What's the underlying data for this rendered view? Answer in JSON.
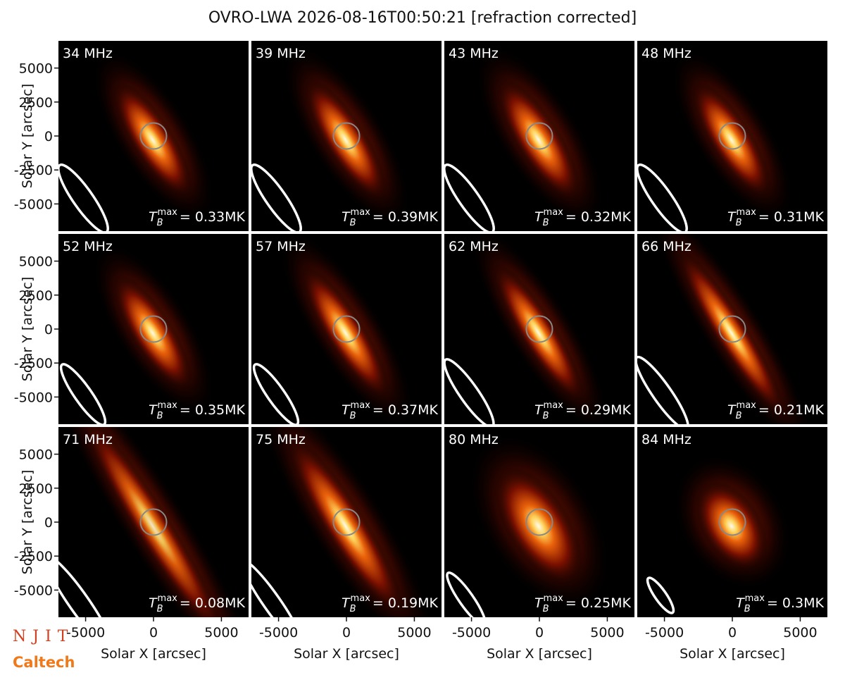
{
  "title": "OVRO-LWA 2026-08-16T00:50:21 [refraction corrected]",
  "logos": [
    "NJIT",
    "Caltech"
  ],
  "chart_data": [
    {
      "type": "image",
      "title": "34 MHz",
      "xlim": [
        -7000,
        7000
      ],
      "ylim": [
        -7000,
        7000
      ],
      "ylabel": "Solar Y [arcsec]",
      "yticks": [
        -5000,
        -2500,
        0,
        2500,
        5000
      ],
      "annotation": {
        "symbol": "T",
        "sub": "B",
        "sup": "max",
        "text": "= 0.33MK"
      }
    },
    {
      "type": "image",
      "title": "39 MHz",
      "xlim": [
        -7000,
        7000
      ],
      "ylim": [
        -7000,
        7000
      ],
      "annotation": {
        "symbol": "T",
        "sub": "B",
        "sup": "max",
        "text": "= 0.39MK"
      }
    },
    {
      "type": "image",
      "title": "43 MHz",
      "xlim": [
        -7000,
        7000
      ],
      "ylim": [
        -7000,
        7000
      ],
      "annotation": {
        "symbol": "T",
        "sub": "B",
        "sup": "max",
        "text": "= 0.32MK"
      }
    },
    {
      "type": "image",
      "title": "48 MHz",
      "xlim": [
        -7000,
        7000
      ],
      "ylim": [
        -7000,
        7000
      ],
      "annotation": {
        "symbol": "T",
        "sub": "B",
        "sup": "max",
        "text": "= 0.31MK"
      }
    },
    {
      "type": "image",
      "title": "52 MHz",
      "xlim": [
        -7000,
        7000
      ],
      "ylim": [
        -7000,
        7000
      ],
      "ylabel": "Solar Y [arcsec]",
      "yticks": [
        -5000,
        -2500,
        0,
        2500,
        5000
      ],
      "annotation": {
        "symbol": "T",
        "sub": "B",
        "sup": "max",
        "text": "= 0.35MK"
      }
    },
    {
      "type": "image",
      "title": "57 MHz",
      "xlim": [
        -7000,
        7000
      ],
      "ylim": [
        -7000,
        7000
      ],
      "annotation": {
        "symbol": "T",
        "sub": "B",
        "sup": "max",
        "text": "= 0.37MK"
      }
    },
    {
      "type": "image",
      "title": "62 MHz",
      "xlim": [
        -7000,
        7000
      ],
      "ylim": [
        -7000,
        7000
      ],
      "annotation": {
        "symbol": "T",
        "sub": "B",
        "sup": "max",
        "text": "= 0.29MK"
      }
    },
    {
      "type": "image",
      "title": "66 MHz",
      "xlim": [
        -7000,
        7000
      ],
      "ylim": [
        -7000,
        7000
      ],
      "annotation": {
        "symbol": "T",
        "sub": "B",
        "sup": "max",
        "text": "= 0.21MK"
      }
    },
    {
      "type": "image",
      "title": "71 MHz",
      "xlim": [
        -7000,
        7000
      ],
      "ylim": [
        -7000,
        7000
      ],
      "xlabel": "Solar X [arcsec]",
      "xticks": [
        -5000,
        0,
        5000
      ],
      "ylabel": "Solar Y [arcsec]",
      "yticks": [
        -5000,
        -2500,
        0,
        2500,
        5000
      ],
      "annotation": {
        "symbol": "T",
        "sub": "B",
        "sup": "max",
        "text": "= 0.08MK"
      }
    },
    {
      "type": "image",
      "title": "75 MHz",
      "xlim": [
        -7000,
        7000
      ],
      "ylim": [
        -7000,
        7000
      ],
      "xlabel": "Solar X [arcsec]",
      "xticks": [
        -5000,
        0,
        5000
      ],
      "annotation": {
        "symbol": "T",
        "sub": "B",
        "sup": "max",
        "text": "= 0.19MK"
      }
    },
    {
      "type": "image",
      "title": "80 MHz",
      "xlim": [
        -7000,
        7000
      ],
      "ylim": [
        -7000,
        7000
      ],
      "xlabel": "Solar X [arcsec]",
      "xticks": [
        -5000,
        0,
        5000
      ],
      "annotation": {
        "symbol": "T",
        "sub": "B",
        "sup": "max",
        "text": "= 0.25MK"
      }
    },
    {
      "type": "image",
      "title": "84 MHz",
      "xlim": [
        -7000,
        7000
      ],
      "ylim": [
        -7000,
        7000
      ],
      "xlabel": "Solar X [arcsec]",
      "xticks": [
        -5000,
        0,
        5000
      ],
      "annotation": {
        "symbol": "T",
        "sub": "B",
        "sup": "max",
        "text": "= 0.3MK"
      }
    }
  ]
}
